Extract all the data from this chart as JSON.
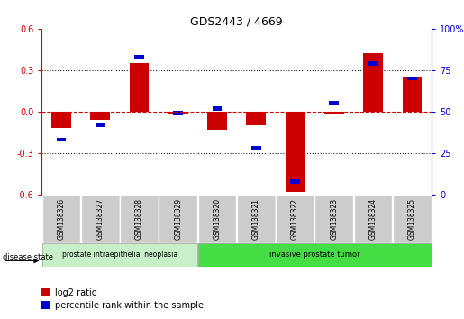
{
  "title": "GDS2443 / 4669",
  "samples": [
    "GSM138326",
    "GSM138327",
    "GSM138328",
    "GSM138329",
    "GSM138320",
    "GSM138321",
    "GSM138322",
    "GSM138323",
    "GSM138324",
    "GSM138325"
  ],
  "log2_ratio": [
    -0.12,
    -0.06,
    0.35,
    -0.02,
    -0.13,
    -0.1,
    -0.58,
    -0.02,
    0.42,
    0.25
  ],
  "percentile_rank": [
    33,
    42,
    83,
    49,
    52,
    28,
    8,
    55,
    79,
    70
  ],
  "ylim_left": [
    -0.6,
    0.6
  ],
  "ylim_right": [
    0,
    100
  ],
  "yticks_left": [
    -0.6,
    -0.3,
    0.0,
    0.3,
    0.6
  ],
  "yticks_right": [
    0,
    25,
    50,
    75,
    100
  ],
  "ytick_labels_right": [
    "0",
    "25",
    "50",
    "75",
    "100%"
  ],
  "red_color": "#cc0000",
  "blue_color": "#0000cc",
  "dotted_line_color": "#222222",
  "zero_line_color": "#cc0000",
  "group1_label": "prostate intraepithelial neoplasia",
  "group2_label": "invasive prostate tumor",
  "group1_indices": [
    0,
    1,
    2,
    3
  ],
  "group2_indices": [
    4,
    5,
    6,
    7,
    8,
    9
  ],
  "group1_bg": "#c8f0c8",
  "group2_bg": "#44dd44",
  "sample_bg": "#cccccc",
  "legend_red_label": "log2 ratio",
  "legend_blue_label": "percentile rank within the sample",
  "disease_state_label": "disease state"
}
